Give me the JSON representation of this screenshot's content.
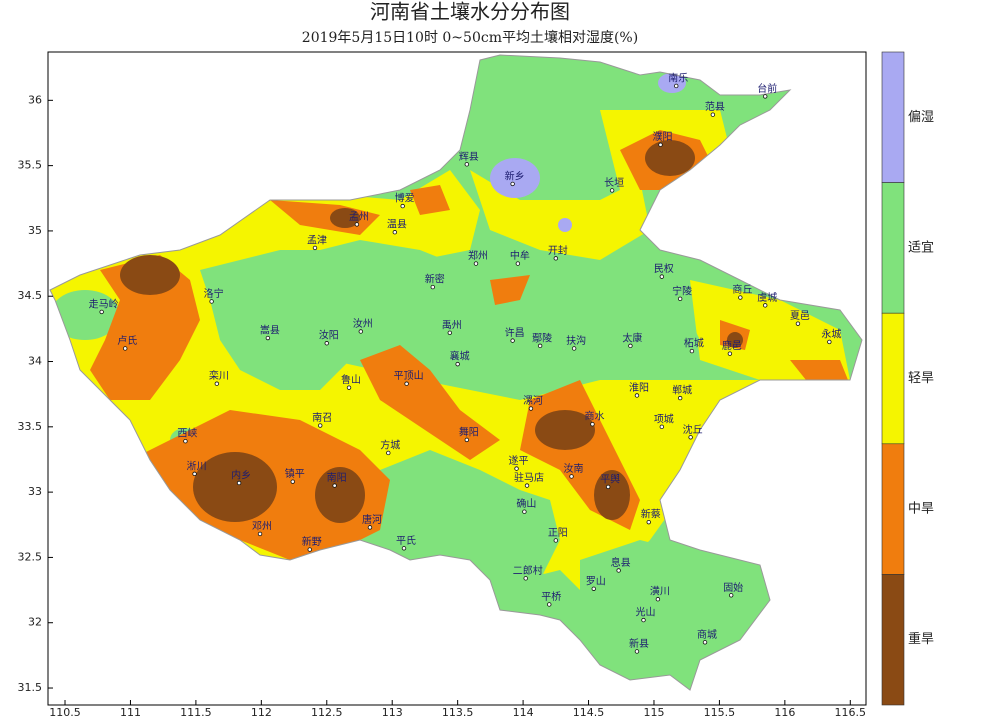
{
  "map": {
    "title": "河南省土壤水分分布图",
    "subtitle": "2019年5月15日10时 0~50cm平均土壤相对湿度(%)",
    "xlim": [
      110.37,
      116.62
    ],
    "ylim": [
      31.37,
      36.37
    ],
    "xticks": [
      110.5,
      111,
      111.5,
      112,
      112.5,
      113,
      113.5,
      114,
      114.5,
      115,
      115.5,
      116,
      116.5
    ],
    "yticks": [
      31.5,
      32,
      32.5,
      33,
      33.5,
      34,
      34.5,
      35,
      35.5,
      36
    ],
    "legend": [
      {
        "label": "偏湿",
        "color": "#a9a9f2"
      },
      {
        "label": "适宜",
        "color": "#80e27c"
      },
      {
        "label": "轻旱",
        "color": "#f5f500"
      },
      {
        "label": "中旱",
        "color": "#f07d0e"
      },
      {
        "label": "重旱",
        "color": "#8a4a14"
      }
    ],
    "stations": [
      {
        "name": "南乐",
        "lon": 115.17,
        "lat": 36.11
      },
      {
        "name": "台前",
        "lon": 115.85,
        "lat": 36.03
      },
      {
        "name": "范县",
        "lon": 115.45,
        "lat": 35.89
      },
      {
        "name": "濮阳",
        "lon": 115.05,
        "lat": 35.66
      },
      {
        "name": "新乡",
        "lon": 113.92,
        "lat": 35.36
      },
      {
        "name": "辉县",
        "lon": 113.57,
        "lat": 35.51
      },
      {
        "name": "长垣",
        "lon": 114.68,
        "lat": 35.31
      },
      {
        "name": "郑州",
        "lon": 113.64,
        "lat": 34.75
      },
      {
        "name": "开封",
        "lon": 114.25,
        "lat": 34.79
      },
      {
        "name": "中牟",
        "lon": 113.96,
        "lat": 34.75
      },
      {
        "name": "民权",
        "lon": 115.06,
        "lat": 34.65
      },
      {
        "name": "宁陵",
        "lon": 115.2,
        "lat": 34.48
      },
      {
        "name": "商丘",
        "lon": 115.66,
        "lat": 34.49
      },
      {
        "name": "虞城",
        "lon": 115.85,
        "lat": 34.43
      },
      {
        "name": "夏邑",
        "lon": 116.1,
        "lat": 34.29
      },
      {
        "name": "永城",
        "lon": 116.34,
        "lat": 34.15
      },
      {
        "name": "新密",
        "lon": 113.31,
        "lat": 34.57
      },
      {
        "name": "孟津",
        "lon": 112.41,
        "lat": 34.87
      },
      {
        "name": "孟州",
        "lon": 112.73,
        "lat": 35.05
      },
      {
        "name": "温县",
        "lon": 113.02,
        "lat": 34.99
      },
      {
        "name": "博爱",
        "lon": 113.08,
        "lat": 35.19
      },
      {
        "name": "洛宁",
        "lon": 111.62,
        "lat": 34.46
      },
      {
        "name": "走马岭",
        "lon": 110.78,
        "lat": 34.38
      },
      {
        "name": "卢氏",
        "lon": 110.96,
        "lat": 34.1
      },
      {
        "name": "栾川",
        "lon": 111.66,
        "lat": 33.83
      },
      {
        "name": "嵩县",
        "lon": 112.05,
        "lat": 34.18
      },
      {
        "name": "汝阳",
        "lon": 112.5,
        "lat": 34.14
      },
      {
        "name": "汝州",
        "lon": 112.76,
        "lat": 34.23
      },
      {
        "name": "禹州",
        "lon": 113.44,
        "lat": 34.22
      },
      {
        "name": "鲁山",
        "lon": 112.67,
        "lat": 33.8
      },
      {
        "name": "平顶山",
        "lon": 113.11,
        "lat": 33.83
      },
      {
        "name": "襄城",
        "lon": 113.5,
        "lat": 33.98
      },
      {
        "name": "许昌",
        "lon": 113.92,
        "lat": 34.16
      },
      {
        "name": "鄢陵",
        "lon": 114.13,
        "lat": 34.12
      },
      {
        "name": "扶沟",
        "lon": 114.39,
        "lat": 34.1
      },
      {
        "name": "太康",
        "lon": 114.82,
        "lat": 34.12
      },
      {
        "name": "柘城",
        "lon": 115.29,
        "lat": 34.08
      },
      {
        "name": "鹿邑",
        "lon": 115.58,
        "lat": 34.06
      },
      {
        "name": "郸城",
        "lon": 115.2,
        "lat": 33.72
      },
      {
        "name": "淮阳",
        "lon": 114.87,
        "lat": 33.74
      },
      {
        "name": "项城",
        "lon": 115.06,
        "lat": 33.5
      },
      {
        "name": "沈丘",
        "lon": 115.28,
        "lat": 33.42
      },
      {
        "name": "商水",
        "lon": 114.53,
        "lat": 33.52
      },
      {
        "name": "漯河",
        "lon": 114.06,
        "lat": 33.64
      },
      {
        "name": "舞阳",
        "lon": 113.57,
        "lat": 33.4
      },
      {
        "name": "西峡",
        "lon": 111.42,
        "lat": 33.39
      },
      {
        "name": "淅川",
        "lon": 111.49,
        "lat": 33.14
      },
      {
        "name": "内乡",
        "lon": 111.83,
        "lat": 33.07
      },
      {
        "name": "镇平",
        "lon": 112.24,
        "lat": 33.08
      },
      {
        "name": "南阳",
        "lon": 112.56,
        "lat": 33.05
      },
      {
        "name": "方城",
        "lon": 112.97,
        "lat": 33.3
      },
      {
        "name": "南召",
        "lon": 112.45,
        "lat": 33.51
      },
      {
        "name": "唐河",
        "lon": 112.83,
        "lat": 32.73
      },
      {
        "name": "新野",
        "lon": 112.37,
        "lat": 32.56
      },
      {
        "name": "邓州",
        "lon": 111.99,
        "lat": 32.68
      },
      {
        "name": "平氏",
        "lon": 113.09,
        "lat": 32.57
      },
      {
        "name": "驻马店",
        "lon": 114.03,
        "lat": 33.05
      },
      {
        "name": "遂平",
        "lon": 113.95,
        "lat": 33.18
      },
      {
        "name": "汝南",
        "lon": 114.37,
        "lat": 33.12
      },
      {
        "name": "平舆",
        "lon": 114.65,
        "lat": 33.04
      },
      {
        "name": "新蔡",
        "lon": 114.96,
        "lat": 32.77
      },
      {
        "name": "确山",
        "lon": 114.01,
        "lat": 32.85
      },
      {
        "name": "正阳",
        "lon": 114.25,
        "lat": 32.63
      },
      {
        "name": "息县",
        "lon": 114.73,
        "lat": 32.4
      },
      {
        "name": "罗山",
        "lon": 114.54,
        "lat": 32.26
      },
      {
        "name": "平桥",
        "lon": 114.2,
        "lat": 32.14
      },
      {
        "name": "二郎村",
        "lon": 114.02,
        "lat": 32.34
      },
      {
        "name": "光山",
        "lon": 114.92,
        "lat": 32.02
      },
      {
        "name": "潢川",
        "lon": 115.03,
        "lat": 32.18
      },
      {
        "name": "固始",
        "lon": 115.59,
        "lat": 32.21
      },
      {
        "name": "商城",
        "lon": 115.39,
        "lat": 31.85
      },
      {
        "name": "新县",
        "lon": 114.87,
        "lat": 31.78
      }
    ]
  }
}
